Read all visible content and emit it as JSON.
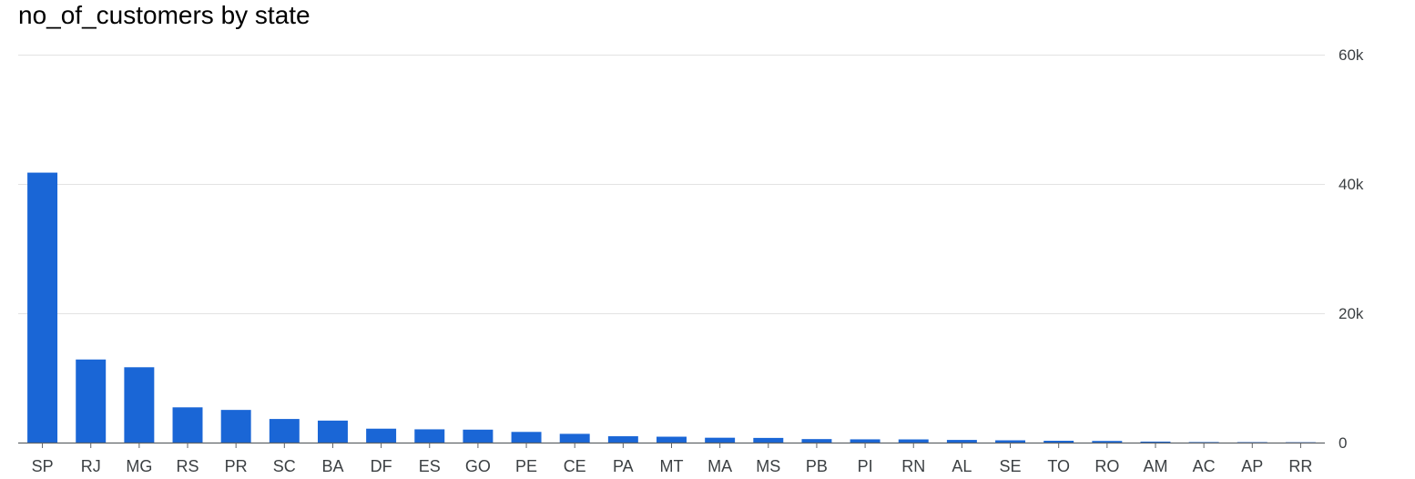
{
  "chart_data": {
    "type": "bar",
    "title": "no_of_customers by state",
    "xlabel": "",
    "ylabel": "",
    "categories": [
      "SP",
      "RJ",
      "MG",
      "RS",
      "PR",
      "SC",
      "BA",
      "DF",
      "ES",
      "GO",
      "PE",
      "CE",
      "PA",
      "MT",
      "MA",
      "MS",
      "PB",
      "PI",
      "RN",
      "AL",
      "SE",
      "TO",
      "RO",
      "AM",
      "AC",
      "AP",
      "RR"
    ],
    "values": [
      41750,
      12850,
      11650,
      5450,
      5050,
      3650,
      3400,
      2150,
      2050,
      2000,
      1650,
      1350,
      980,
      910,
      750,
      720,
      540,
      500,
      490,
      410,
      350,
      280,
      250,
      150,
      80,
      70,
      50
    ],
    "yticks": [
      "60k",
      "40k",
      "20k",
      "0"
    ],
    "ytick_values": [
      60000,
      40000,
      20000,
      0
    ],
    "ylim": [
      0,
      60000
    ],
    "y_axis_side": "right",
    "grid": true,
    "legend": "none",
    "bar_color": "#1a66d6"
  }
}
